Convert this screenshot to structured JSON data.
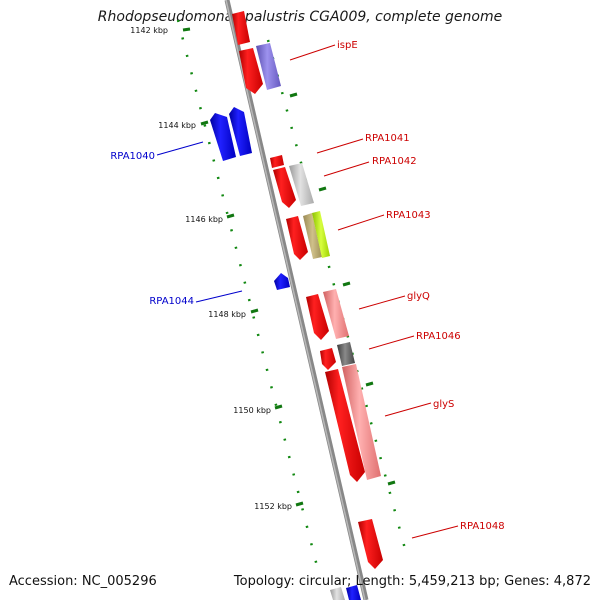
{
  "title": "Rhodopseudomonas palustris CGA009, complete genome",
  "footer": {
    "accession": "Accession: NC_005296",
    "summary": "Topology: circular; Length: 5,459,213 bp; Genes: 4,872"
  },
  "scale_labels": [
    "1142 kbp",
    "1144 kbp",
    "1146 kbp",
    "1148 kbp",
    "1150 kbp",
    "1152 kbp"
  ],
  "gene_labels": [
    "ispE",
    "RPA1041",
    "RPA1042",
    "RPA1043",
    "glyQ",
    "RPA1046",
    "glyS",
    "RPA1048",
    "RPA1040",
    "RPA1044"
  ],
  "colors": {
    "forward_label": "#cc0000",
    "reverse_label": "#0000cc",
    "backbone": "#888888",
    "tick": "#007700",
    "cds_red": "#ff0000",
    "cds_blue": "#0000ff"
  }
}
